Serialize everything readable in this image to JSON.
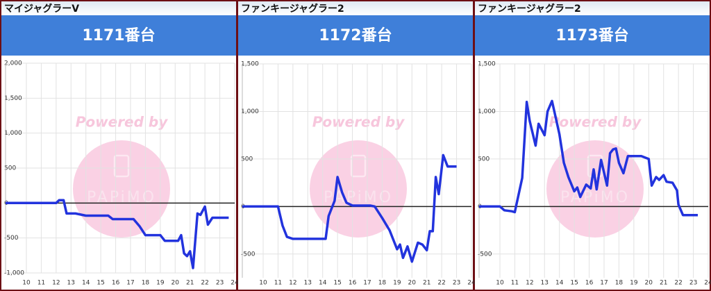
{
  "chart_data": [
    {
      "type": "line",
      "title": "マイジャグラーV",
      "subtitle": "1171番台",
      "watermark": [
        "Powered by",
        "PAPiMO"
      ],
      "x": [
        8.6,
        12,
        12.2,
        12.5,
        12.7,
        13.3,
        14,
        15.5,
        15.8,
        17.2,
        17.6,
        18,
        19,
        19.3,
        20.2,
        20.4,
        20.6,
        20.8,
        21,
        21.2,
        21.5,
        21.7,
        22,
        22.2,
        22.5,
        23,
        23.6
      ],
      "series": [
        {
          "color": "#2233dd",
          "values": [
            0,
            0,
            40,
            40,
            -150,
            -150,
            -180,
            -180,
            -230,
            -230,
            -330,
            -460,
            -460,
            -540,
            -540,
            -460,
            -720,
            -760,
            -690,
            -930,
            -150,
            -170,
            -50,
            -310,
            -210,
            -210,
            -210
          ]
        }
      ],
      "xlim": [
        8.6,
        24
      ],
      "xticks": [
        10,
        11,
        12,
        13,
        14,
        15,
        16,
        17,
        18,
        19,
        20,
        21,
        22,
        23,
        24
      ],
      "ylim": [
        -1000,
        2000
      ],
      "yticks": [
        {
          "value": -1000,
          "label": "-1,000"
        },
        -500,
        0,
        500,
        {
          "value": 1000,
          "label": "1,000"
        },
        {
          "value": 1500,
          "label": "1,500"
        },
        {
          "value": 2000,
          "label": "2,000"
        }
      ],
      "grid": true
    },
    {
      "type": "line",
      "title": "ファンキージャグラー2",
      "subtitle": "1172番台",
      "watermark": [
        "Powered by",
        "PAPiMO"
      ],
      "x": [
        8.6,
        11,
        11.3,
        11.6,
        12,
        13,
        14.2,
        14.4,
        14.8,
        15,
        15.3,
        15.6,
        16,
        17.2,
        17.5,
        18,
        18.5,
        19,
        19.2,
        19.4,
        19.7,
        20,
        20.4,
        20.7,
        21,
        21.2,
        21.4,
        21.6,
        21.8,
        22.1,
        22.4,
        23
      ],
      "series": [
        {
          "color": "#2233dd",
          "values": [
            0,
            0,
            -200,
            -320,
            -340,
            -340,
            -340,
            -100,
            60,
            310,
            150,
            40,
            10,
            10,
            0,
            -120,
            -250,
            -450,
            -400,
            -540,
            -420,
            -580,
            -380,
            -400,
            -460,
            -260,
            -260,
            310,
            130,
            540,
            420,
            420
          ]
        }
      ],
      "xlim": [
        8.6,
        24
      ],
      "xticks": [
        10,
        11,
        12,
        13,
        14,
        15,
        16,
        17,
        18,
        19,
        20,
        21,
        22,
        23,
        24
      ],
      "ylim": [
        -750,
        1500
      ],
      "yticks": [
        -500,
        0,
        500,
        {
          "value": 1000,
          "label": "1,000"
        },
        {
          "value": 1500,
          "label": "1,500"
        }
      ],
      "grid": true
    },
    {
      "type": "line",
      "title": "ファンキージャグラー2",
      "subtitle": "1173番台",
      "watermark": [
        "Powered by",
        "PAPiMO"
      ],
      "x": [
        8.6,
        10,
        10.3,
        10.8,
        11,
        11.5,
        11.8,
        12,
        12.4,
        12.6,
        13,
        13.2,
        13.5,
        14,
        14.3,
        14.6,
        15,
        15.2,
        15.4,
        15.8,
        16.1,
        16.3,
        16.5,
        16.8,
        17.2,
        17.4,
        17.6,
        17.8,
        18,
        18.3,
        18.6,
        19.5,
        20,
        20.2,
        20.5,
        20.7,
        21,
        21.2,
        21.6,
        21.9,
        22,
        22.3,
        22.8,
        23.3
      ],
      "series": [
        {
          "color": "#2233dd",
          "values": [
            0,
            0,
            -40,
            -50,
            -60,
            300,
            1100,
            900,
            640,
            870,
            750,
            1000,
            1110,
            760,
            460,
            310,
            160,
            200,
            100,
            230,
            190,
            390,
            180,
            490,
            220,
            560,
            600,
            610,
            460,
            350,
            530,
            530,
            500,
            220,
            310,
            280,
            330,
            260,
            250,
            170,
            20,
            -90,
            -90,
            -90
          ]
        }
      ],
      "xlim": [
        8.6,
        24
      ],
      "xticks": [
        10,
        11,
        12,
        13,
        14,
        15,
        16,
        17,
        18,
        19,
        20,
        21,
        22,
        23,
        24
      ],
      "ylim": [
        -750,
        1500
      ],
      "yticks": [
        -500,
        0,
        500,
        {
          "value": 1000,
          "label": "1,000"
        },
        {
          "value": 1500,
          "label": "1,500"
        }
      ],
      "grid": true
    }
  ]
}
